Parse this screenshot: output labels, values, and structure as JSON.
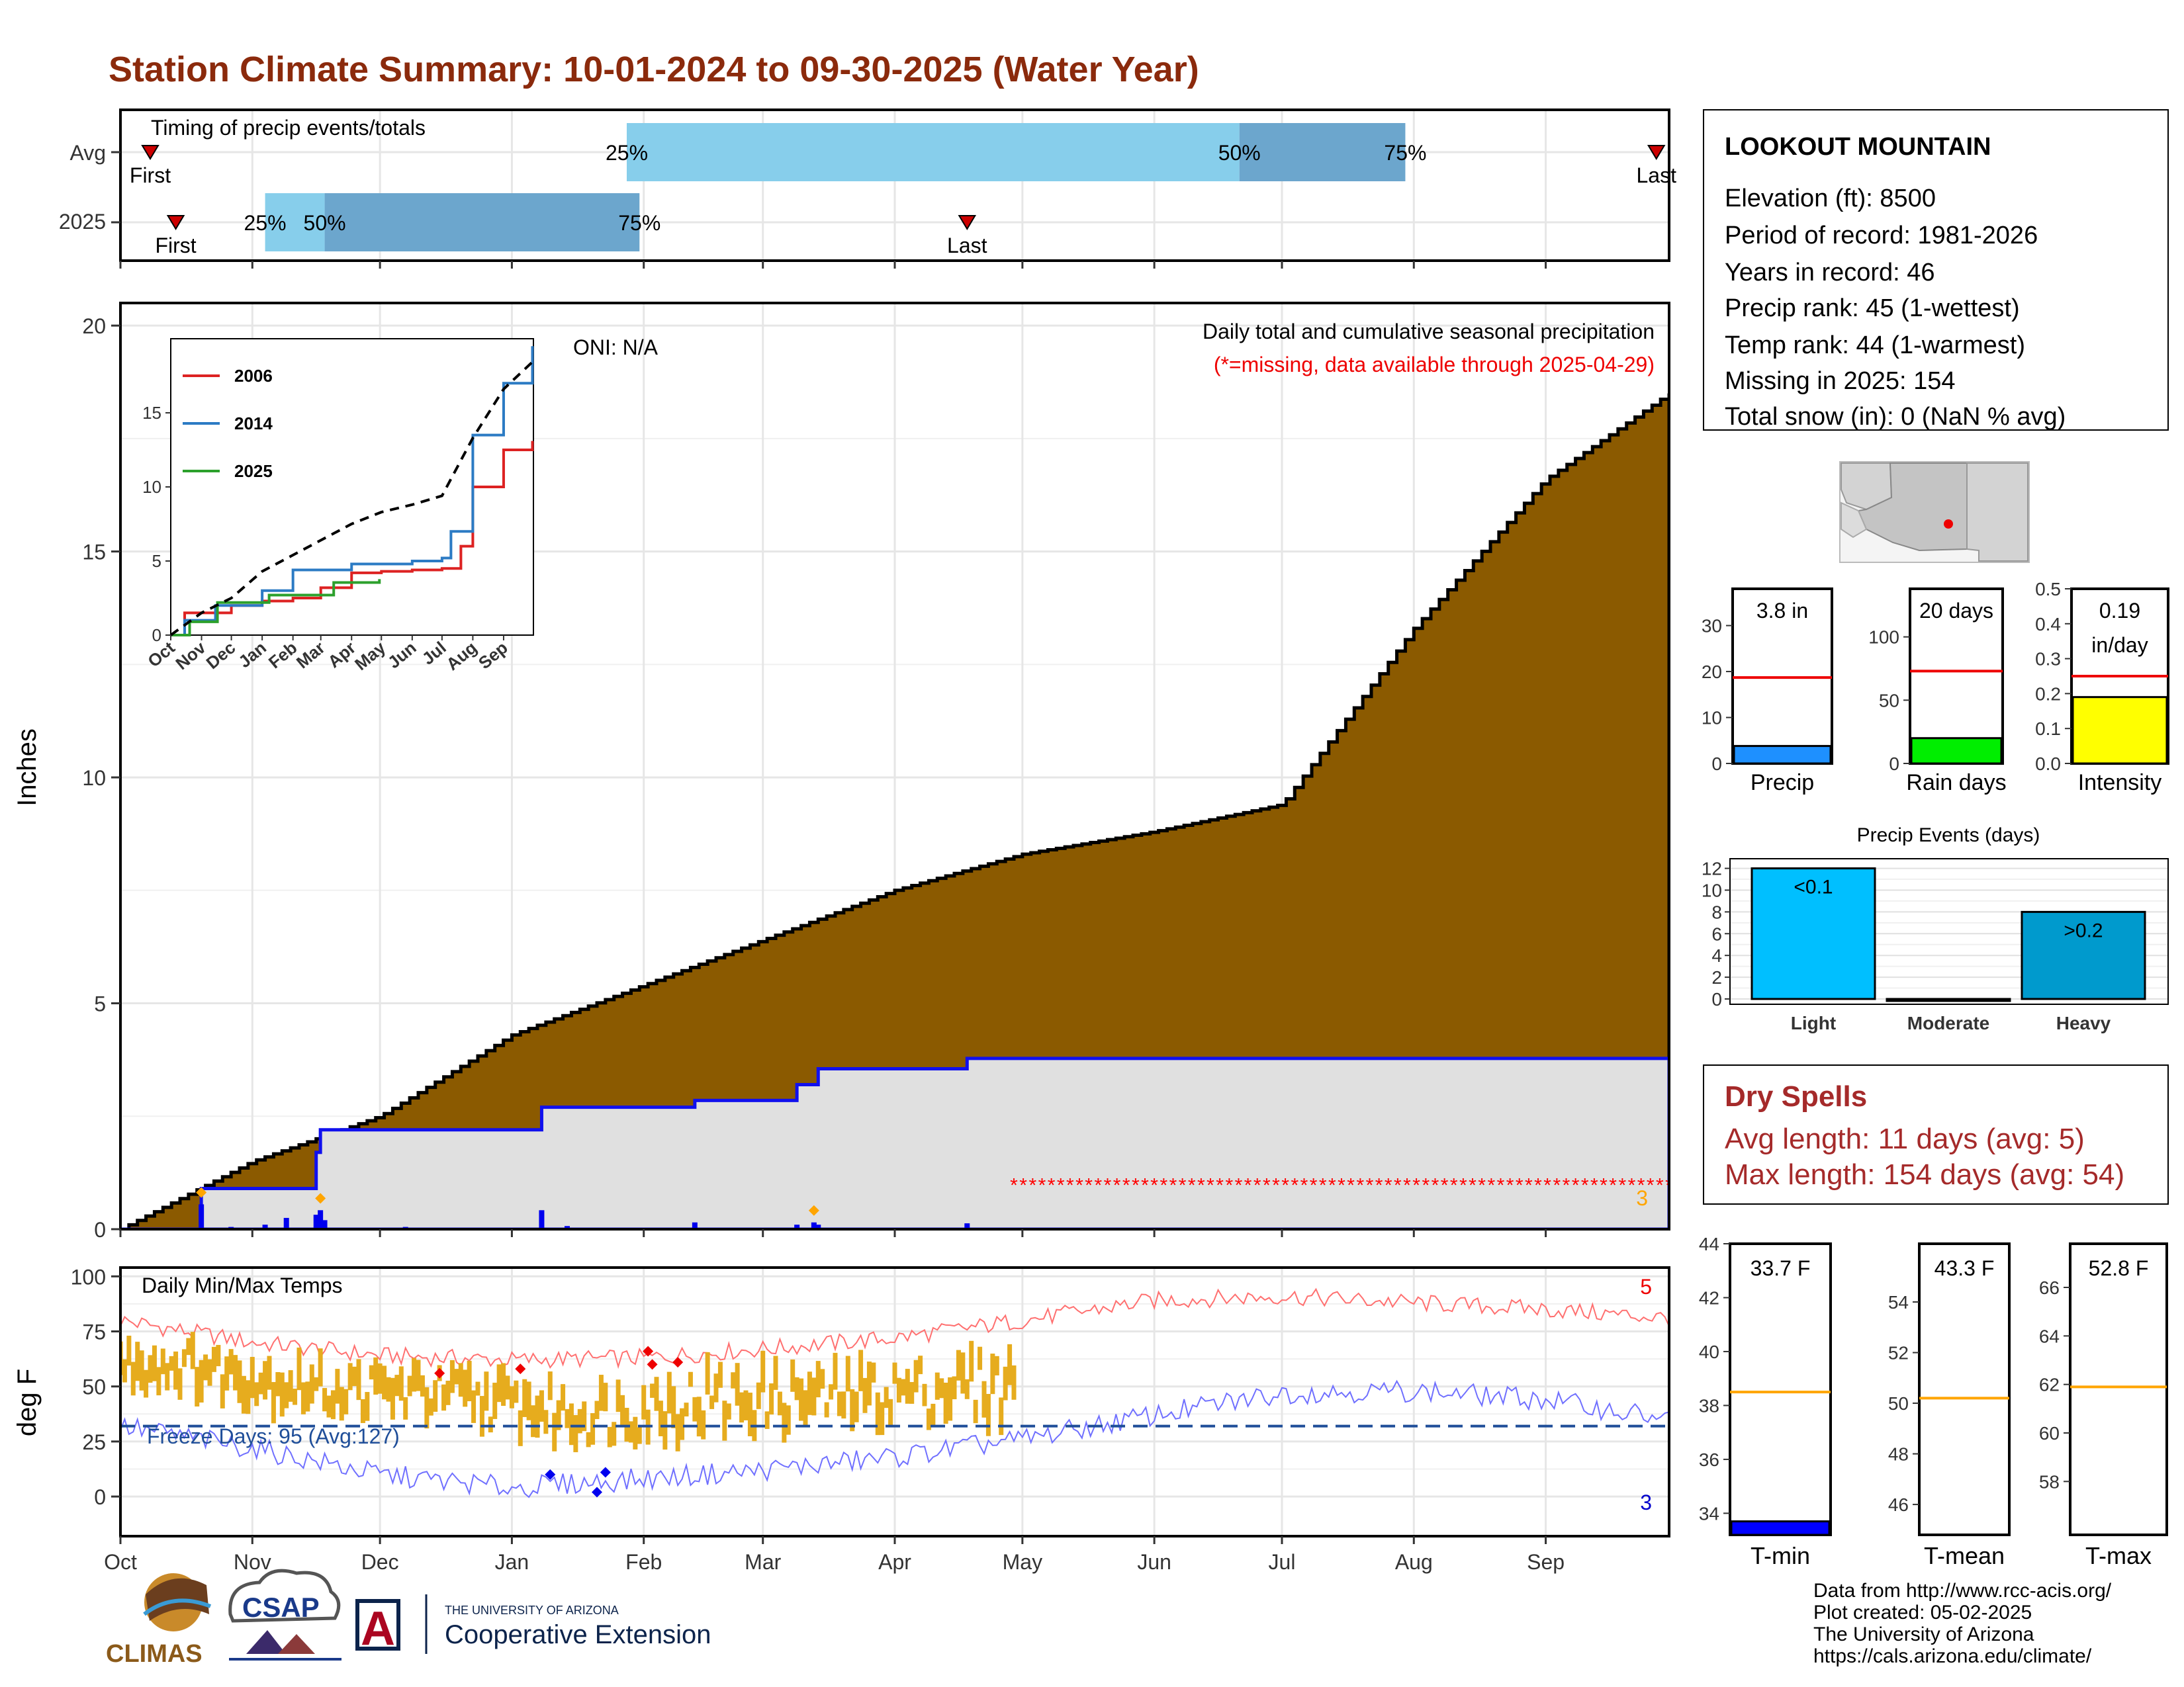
{
  "title": "Station Climate Summary: 10-01-2024 to 09-30-2025 (Water Year)",
  "timing_panel": {
    "label": "Timing of precip events/totals",
    "rows": [
      "Avg",
      "2025"
    ],
    "markers": [
      "First",
      "Last",
      "25%",
      "50%",
      "75%"
    ]
  },
  "main_panel": {
    "ylabel": "Inches",
    "oni": "ONI: N/A",
    "annotation": "Daily total and cumulative seasonal precipitation",
    "missing_note": "(*=missing, data available through 2025-04-29)",
    "count_label": "3",
    "y_ticks": [
      "0",
      "5",
      "10",
      "15",
      "20"
    ]
  },
  "inset": {
    "legend": [
      "2006",
      "2014",
      "2025"
    ],
    "x_ticks": [
      "Oct",
      "Nov",
      "Dec",
      "Jan",
      "Feb",
      "Mar",
      "Apr",
      "May",
      "Jun",
      "Jul",
      "Aug",
      "Sep"
    ],
    "y_ticks": [
      "0",
      "5",
      "10",
      "15"
    ]
  },
  "temp_panel": {
    "ylabel": "deg F",
    "label": "Daily Min/Max Temps",
    "freeze": "Freeze Days: 95 (Avg:127)",
    "count_high": "5",
    "count_low": "3",
    "y_ticks": [
      "0",
      "25",
      "50",
      "75",
      "100"
    ],
    "x_ticks": [
      "Oct",
      "Nov",
      "Dec",
      "Jan",
      "Feb",
      "Mar",
      "Apr",
      "May",
      "Jun",
      "Jul",
      "Aug",
      "Sep"
    ]
  },
  "station": {
    "name": "LOOKOUT MOUNTAIN",
    "elevation": "Elevation (ft): 8500",
    "period": "Period of record: 1981-2026",
    "years": "Years in record: 46",
    "precip_rank": "Precip rank: 45 (1-wettest)",
    "temp_rank": "Temp rank: 44 (1-warmest)",
    "missing": "Missing in 2025: 154",
    "snow": "Total snow (in): 0 (NaN % avg)"
  },
  "mini_bars": {
    "precip": {
      "label": "3.8 in",
      "name": "Precip",
      "value": 3.8,
      "avg": 18.7,
      "max": 38,
      "ticks": [
        "0",
        "10",
        "20",
        "30"
      ],
      "color": "#1e90ff"
    },
    "rain_days": {
      "label": "20 days",
      "name": "Rain days",
      "value": 20,
      "avg": 73,
      "max": 138,
      "ticks": [
        "0",
        "50",
        "100"
      ],
      "color": "#00ee00"
    },
    "intensity": {
      "label1": "0.19",
      "label2": "in/day",
      "name": "Intensity",
      "value": 0.19,
      "avg": 0.25,
      "max": 0.5,
      "ticks": [
        "0.0",
        "0.1",
        "0.2",
        "0.3",
        "0.4",
        "0.5"
      ],
      "color": "#ffff00"
    }
  },
  "precip_events": {
    "title": "Precip Events (days)",
    "categories": [
      "Light",
      "Moderate",
      "Heavy"
    ],
    "values": [
      12,
      0,
      8
    ],
    "labels": [
      "<0.1",
      "",
      ">0.2"
    ],
    "y_ticks": [
      "0",
      "2",
      "4",
      "6",
      "8",
      "10",
      "12"
    ],
    "colors": [
      "#00bfff",
      "#0000ff",
      "#009acd"
    ]
  },
  "dry_spells": {
    "title": "Dry Spells",
    "avg": "Avg length: 11 days (avg: 5)",
    "max": "Max length: 154 days (avg: 54)"
  },
  "temp_bars": {
    "tmin": {
      "label": "33.7 F",
      "name": "T-min",
      "value": 33.7,
      "avg": 38.5,
      "ymin": 33.2,
      "ymax": 44,
      "ticks": [
        "34",
        "36",
        "38",
        "40",
        "42",
        "44"
      ],
      "color": "#0000ff"
    },
    "tmean": {
      "label": "43.3 F",
      "name": "T-mean",
      "value": 43.3,
      "avg": 50.2,
      "ymin": 44.8,
      "ymax": 56.3,
      "ticks": [
        "46",
        "48",
        "50",
        "52",
        "54"
      ],
      "color": "#0000ff"
    },
    "tmax": {
      "label": "52.8 F",
      "name": "T-max",
      "value": 52.8,
      "avg": 61.9,
      "ymin": 55.8,
      "ymax": 67.8,
      "ticks": [
        "58",
        "60",
        "62",
        "64",
        "66"
      ],
      "color": "#0000ff"
    }
  },
  "credits": [
    "Data from http://www.rcc-acis.org/",
    "Plot created: 05-02-2025",
    "The University of Arizona",
    "https://cals.arizona.edu/climate/"
  ],
  "logos": {
    "climas": "CLIMAS",
    "csap": "CSAP",
    "ua_small": "THE UNIVERSITY OF ARIZONA",
    "ua_large": "Cooperative Extension",
    "ua_letter": "A"
  },
  "chart_data": [
    {
      "type": "area",
      "title": "Daily total and cumulative seasonal precipitation",
      "ylabel": "Inches",
      "ylim": [
        0,
        20
      ],
      "x_range": [
        "2024-10-01",
        "2025-09-30"
      ],
      "avg_cumulative": [
        {
          "x": "2024-10-01",
          "y": 0
        },
        {
          "x": "2024-11-01",
          "y": 1.5
        },
        {
          "x": "2024-12-01",
          "y": 2.5
        },
        {
          "x": "2025-01-01",
          "y": 4.3
        },
        {
          "x": "2025-02-01",
          "y": 5.4
        },
        {
          "x": "2025-03-01",
          "y": 6.4
        },
        {
          "x": "2025-04-01",
          "y": 7.5
        },
        {
          "x": "2025-05-01",
          "y": 8.3
        },
        {
          "x": "2025-06-01",
          "y": 8.8
        },
        {
          "x": "2025-07-01",
          "y": 9.4
        },
        {
          "x": "2025-08-01",
          "y": 13.3
        },
        {
          "x": "2025-09-01",
          "y": 16.6
        },
        {
          "x": "2025-09-30",
          "y": 18.5
        }
      ],
      "cumulative_2025": [
        {
          "x": "2024-10-01",
          "y": 0
        },
        {
          "x": "2024-10-20",
          "y": 0.9
        },
        {
          "x": "2024-11-16",
          "y": 1.7
        },
        {
          "x": "2024-11-17",
          "y": 2.2
        },
        {
          "x": "2024-12-31",
          "y": 2.2
        },
        {
          "x": "2025-01-08",
          "y": 2.7
        },
        {
          "x": "2025-02-13",
          "y": 2.85
        },
        {
          "x": "2025-03-09",
          "y": 3.2
        },
        {
          "x": "2025-03-14",
          "y": 3.55
        },
        {
          "x": "2025-04-18",
          "y": 3.78
        },
        {
          "x": "2025-09-30",
          "y": 3.78
        }
      ],
      "daily_2025": [
        {
          "x": "2024-10-20",
          "y": 0.55
        },
        {
          "x": "2024-10-27",
          "y": 0.05
        },
        {
          "x": "2024-11-04",
          "y": 0.1
        },
        {
          "x": "2024-11-09",
          "y": 0.25
        },
        {
          "x": "2024-11-16",
          "y": 0.32
        },
        {
          "x": "2024-11-17",
          "y": 0.42
        },
        {
          "x": "2024-11-18",
          "y": 0.2
        },
        {
          "x": "2024-12-07",
          "y": 0.05
        },
        {
          "x": "2025-01-08",
          "y": 0.42
        },
        {
          "x": "2025-01-14",
          "y": 0.07
        },
        {
          "x": "2025-02-13",
          "y": 0.15
        },
        {
          "x": "2025-03-09",
          "y": 0.1
        },
        {
          "x": "2025-03-13",
          "y": 0.15
        },
        {
          "x": "2025-03-14",
          "y": 0.1
        },
        {
          "x": "2025-04-18",
          "y": 0.13
        }
      ],
      "missing_range": [
        "2025-04-29",
        "2025-09-30"
      ]
    },
    {
      "type": "line",
      "title": "",
      "ylim": [
        0,
        20
      ],
      "series": [
        {
          "name": "2006",
          "color": "#dd2222",
          "points": [
            {
              "x": "2005-10-01",
              "y": 0
            },
            {
              "x": "2005-10-15",
              "y": 1.5
            },
            {
              "x": "2005-12-01",
              "y": 2.0
            },
            {
              "x": "2006-01-01",
              "y": 2.3
            },
            {
              "x": "2006-02-01",
              "y": 2.5
            },
            {
              "x": "2006-03-01",
              "y": 3.2
            },
            {
              "x": "2006-04-01",
              "y": 4.2
            },
            {
              "x": "2006-05-01",
              "y": 4.3
            },
            {
              "x": "2006-06-01",
              "y": 4.4
            },
            {
              "x": "2006-07-01",
              "y": 4.5
            },
            {
              "x": "2006-07-20",
              "y": 6.0
            },
            {
              "x": "2006-08-01",
              "y": 10.0
            },
            {
              "x": "2006-09-01",
              "y": 12.5
            },
            {
              "x": "2006-09-30",
              "y": 13.1
            }
          ]
        },
        {
          "name": "2014",
          "color": "#2c7bc4",
          "points": [
            {
              "x": "2013-10-01",
              "y": 0
            },
            {
              "x": "2013-10-15",
              "y": 1.0
            },
            {
              "x": "2013-11-15",
              "y": 2.0
            },
            {
              "x": "2014-01-01",
              "y": 3.0
            },
            {
              "x": "2014-02-01",
              "y": 4.4
            },
            {
              "x": "2014-04-01",
              "y": 4.8
            },
            {
              "x": "2014-06-01",
              "y": 5.0
            },
            {
              "x": "2014-07-01",
              "y": 5.2
            },
            {
              "x": "2014-07-10",
              "y": 7.0
            },
            {
              "x": "2014-08-01",
              "y": 13.5
            },
            {
              "x": "2014-09-01",
              "y": 17.0
            },
            {
              "x": "2014-09-30",
              "y": 19.5
            }
          ]
        },
        {
          "name": "2025",
          "color": "#2ca02c",
          "points": [
            {
              "x": "2024-10-01",
              "y": 0
            },
            {
              "x": "2024-10-20",
              "y": 0.9
            },
            {
              "x": "2024-11-17",
              "y": 2.2
            },
            {
              "x": "2025-01-08",
              "y": 2.7
            },
            {
              "x": "2025-03-14",
              "y": 3.55
            },
            {
              "x": "2025-04-29",
              "y": 3.78
            }
          ]
        },
        {
          "name": "avg",
          "color": "#000000",
          "points": [
            {
              "x": "Oct",
              "y": 0
            },
            {
              "x": "Nov",
              "y": 1.5
            },
            {
              "x": "Dec",
              "y": 2.5
            },
            {
              "x": "Jan",
              "y": 4.3
            },
            {
              "x": "Feb",
              "y": 5.4
            },
            {
              "x": "Mar",
              "y": 6.4
            },
            {
              "x": "Apr",
              "y": 7.5
            },
            {
              "x": "May",
              "y": 8.3
            },
            {
              "x": "Jun",
              "y": 8.8
            },
            {
              "x": "Jul",
              "y": 9.4
            },
            {
              "x": "Aug",
              "y": 13.3
            },
            {
              "x": "Sep",
              "y": 16.6
            },
            {
              "x": "end",
              "y": 18.5
            }
          ]
        }
      ]
    },
    {
      "type": "line",
      "title": "Daily Min/Max Temps",
      "ylabel": "deg F",
      "ylim": [
        -18,
        104
      ],
      "avg_max_by_month": [
        {
          "x": "Oct",
          "y": 80
        },
        {
          "x": "Nov",
          "y": 70
        },
        {
          "x": "Dec",
          "y": 64
        },
        {
          "x": "Jan",
          "y": 62
        },
        {
          "x": "Feb",
          "y": 63
        },
        {
          "x": "Mar",
          "y": 67
        },
        {
          "x": "Apr",
          "y": 72
        },
        {
          "x": "May",
          "y": 80
        },
        {
          "x": "Jun",
          "y": 89
        },
        {
          "x": "Jul",
          "y": 91
        },
        {
          "x": "Aug",
          "y": 88
        },
        {
          "x": "Sep",
          "y": 85
        },
        {
          "x": "end",
          "y": 81
        }
      ],
      "avg_min_by_month": [
        {
          "x": "Oct",
          "y": 32
        },
        {
          "x": "Nov",
          "y": 22
        },
        {
          "x": "Dec",
          "y": 10
        },
        {
          "x": "Jan",
          "y": 4
        },
        {
          "x": "Feb",
          "y": 8
        },
        {
          "x": "Mar",
          "y": 12
        },
        {
          "x": "Apr",
          "y": 18
        },
        {
          "x": "May",
          "y": 26
        },
        {
          "x": "Jun",
          "y": 37
        },
        {
          "x": "Jul",
          "y": 47
        },
        {
          "x": "Aug",
          "y": 48
        },
        {
          "x": "Sep",
          "y": 44
        },
        {
          "x": "end",
          "y": 35
        }
      ],
      "daily_range_2025_by_month": [
        {
          "x": "Oct",
          "low": 48,
          "high": 72
        },
        {
          "x": "Nov",
          "low": 36,
          "high": 62
        },
        {
          "x": "Dec",
          "low": 34,
          "high": 60
        },
        {
          "x": "Jan",
          "low": 22,
          "high": 52
        },
        {
          "x": "Feb",
          "low": 26,
          "high": 62
        },
        {
          "x": "Mar",
          "low": 30,
          "high": 60
        },
        {
          "x": "Apr",
          "low": 32,
          "high": 68
        }
      ],
      "freeze_line": 32
    },
    {
      "type": "bar",
      "title": "Timing of precip events/totals",
      "categories": [
        "Avg",
        "2025"
      ],
      "series": [
        {
          "name": "Avg",
          "values": {
            "First": "2024-10-08",
            "25%": "2025-01-28",
            "50%": "2025-06-21",
            "75%": "2025-07-30",
            "Last": "2025-09-27"
          }
        },
        {
          "name": "2025",
          "values": {
            "First": "2024-10-14",
            "25%": "2024-11-04",
            "50%": "2024-11-18",
            "75%": "2025-01-31",
            "Last": "2025-04-18"
          }
        }
      ]
    }
  ]
}
